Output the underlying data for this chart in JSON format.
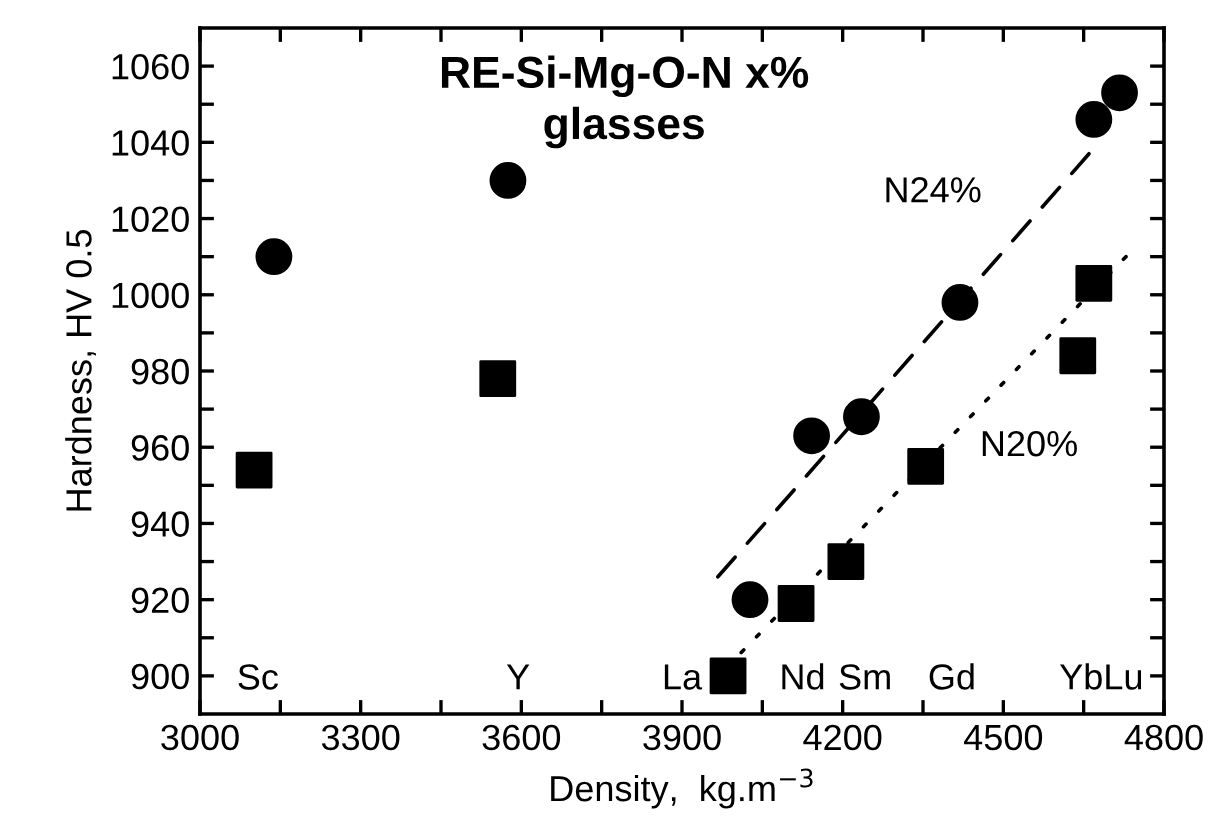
{
  "chart_data": {
    "type": "scatter",
    "title": "RE-Si-Mg-O-N x%\nglasses",
    "xlabel": "Density,  kg.m$^{−3}$",
    "ylabel": "Hardness, HV 0.5",
    "xlim": [
      3000,
      4800
    ],
    "ylim": [
      890,
      1070
    ],
    "xticks": [
      3000,
      {
        "value": 3150,
        "label": null
      },
      3300,
      {
        "value": 3450,
        "label": null
      },
      3600,
      {
        "value": 3750,
        "label": null
      },
      3900,
      {
        "value": 4050,
        "label": null
      },
      4200,
      {
        "value": 4350,
        "label": null
      },
      4500,
      {
        "value": 4650,
        "label": null
      },
      4800
    ],
    "yticks": [
      900,
      {
        "value": 910,
        "label": null
      },
      920,
      {
        "value": 930,
        "label": null
      },
      940,
      {
        "value": 950,
        "label": null
      },
      960,
      {
        "value": 970,
        "label": null
      },
      980,
      {
        "value": 990,
        "label": null
      },
      1000,
      {
        "value": 1010,
        "label": null
      },
      1020,
      {
        "value": 1030,
        "label": null
      },
      1040,
      {
        "value": 1050,
        "label": null
      },
      1060
    ],
    "grid": false,
    "legend": false,
    "series": [
      {
        "marker": "circle",
        "color": "#000000",
        "x": [
          3138,
          3575,
          4027,
          4142,
          4235,
          4419,
          4669,
          4717
        ],
        "values": [
          1010,
          1030,
          920,
          963,
          968,
          998,
          1046,
          1053
        ]
      },
      {
        "marker": "square",
        "color": "#000000",
        "x": [
          3101,
          3556,
          3986,
          4113,
          4206,
          4355,
          4639,
          4669
        ],
        "values": [
          954,
          978,
          900,
          919,
          930,
          955,
          984,
          1003
        ]
      },
      {
        "type": "line",
        "line_style": "dashed",
        "color": "#000000",
        "x": [
          3967,
          4660
        ],
        "values": [
          926,
          1037
        ]
      },
      {
        "type": "line",
        "line_style": "dotted",
        "color": "#000000",
        "x": [
          3982,
          4729
        ],
        "values": [
          902,
          1010
        ]
      }
    ],
    "annotations": [
      "Sc",
      "Y",
      "La",
      "Nd",
      "Sm",
      "Gd",
      "YbLu",
      "N24%",
      "N20%"
    ]
  }
}
